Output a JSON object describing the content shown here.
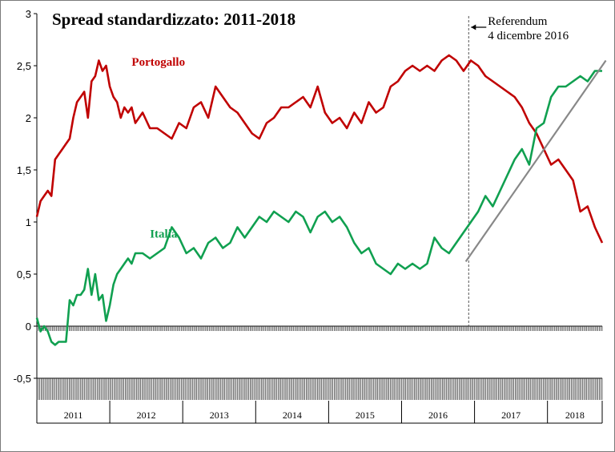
{
  "chart_data": {
    "type": "line",
    "title": "Spread standardizzato: 2011-2018",
    "xlabel": "",
    "ylabel": "",
    "ylim": [
      -0.5,
      3
    ],
    "xlim": [
      2011.0,
      2018.75
    ],
    "yticks": [
      3,
      2.5,
      2,
      1.5,
      1,
      0.5,
      0,
      -0.5
    ],
    "ytick_labels": [
      "3",
      "2,5",
      "2",
      "1,5",
      "1",
      "0,5",
      "0",
      "-0,5"
    ],
    "years": [
      "2011",
      "2012",
      "2013",
      "2014",
      "2015",
      "2016",
      "2017",
      "2018"
    ],
    "grid": false,
    "legend": "inline labels",
    "annotation": {
      "x": 2016.92,
      "line1": "Referendum",
      "line2": "4 dicembre 2016"
    },
    "trendline": {
      "x": [
        2016.88,
        2018.8
      ],
      "y": [
        0.62,
        2.55
      ],
      "color": "#888888"
    },
    "series": [
      {
        "name": "Portogallo",
        "color": "#c00000",
        "x": [
          2011.0,
          2011.05,
          2011.1,
          2011.15,
          2011.2,
          2011.25,
          2011.3,
          2011.35,
          2011.4,
          2011.45,
          2011.5,
          2011.55,
          2011.6,
          2011.65,
          2011.7,
          2011.75,
          2011.8,
          2011.85,
          2011.9,
          2011.95,
          2012.0,
          2012.05,
          2012.1,
          2012.15,
          2012.2,
          2012.25,
          2012.3,
          2012.35,
          2012.45,
          2012.55,
          2012.65,
          2012.75,
          2012.85,
          2012.95,
          2013.05,
          2013.15,
          2013.25,
          2013.35,
          2013.45,
          2013.55,
          2013.65,
          2013.75,
          2013.85,
          2013.95,
          2014.05,
          2014.15,
          2014.25,
          2014.35,
          2014.45,
          2014.55,
          2014.65,
          2014.75,
          2014.85,
          2014.95,
          2015.05,
          2015.15,
          2015.25,
          2015.35,
          2015.45,
          2015.55,
          2015.65,
          2015.75,
          2015.85,
          2015.95,
          2016.05,
          2016.15,
          2016.25,
          2016.35,
          2016.45,
          2016.55,
          2016.65,
          2016.75,
          2016.85,
          2016.95,
          2017.05,
          2017.15,
          2017.25,
          2017.35,
          2017.45,
          2017.55,
          2017.65,
          2017.75,
          2017.85,
          2017.95,
          2018.05,
          2018.15,
          2018.25,
          2018.35,
          2018.45,
          2018.55,
          2018.65,
          2018.75
        ],
        "y": [
          1.05,
          1.2,
          1.25,
          1.3,
          1.25,
          1.6,
          1.65,
          1.7,
          1.75,
          1.8,
          2.0,
          2.15,
          2.2,
          2.25,
          2.0,
          2.35,
          2.4,
          2.55,
          2.45,
          2.5,
          2.3,
          2.2,
          2.15,
          2.0,
          2.1,
          2.05,
          2.1,
          1.95,
          2.05,
          1.9,
          1.9,
          1.85,
          1.8,
          1.95,
          1.9,
          2.1,
          2.15,
          2.0,
          2.3,
          2.2,
          2.1,
          2.05,
          1.95,
          1.85,
          1.8,
          1.95,
          2.0,
          2.1,
          2.1,
          2.15,
          2.2,
          2.1,
          2.3,
          2.05,
          1.95,
          2.0,
          1.9,
          2.05,
          1.95,
          2.15,
          2.05,
          2.1,
          2.3,
          2.35,
          2.45,
          2.5,
          2.45,
          2.5,
          2.45,
          2.55,
          2.6,
          2.55,
          2.45,
          2.55,
          2.5,
          2.4,
          2.35,
          2.3,
          2.25,
          2.2,
          2.1,
          1.95,
          1.85,
          1.7,
          1.55,
          1.6,
          1.5,
          1.4,
          1.1,
          1.15,
          0.95,
          0.8
        ]
      },
      {
        "name": "Italia",
        "color": "#10a050",
        "x": [
          2011.0,
          2011.05,
          2011.1,
          2011.15,
          2011.2,
          2011.25,
          2011.3,
          2011.35,
          2011.4,
          2011.45,
          2011.5,
          2011.55,
          2011.6,
          2011.65,
          2011.7,
          2011.75,
          2011.8,
          2011.85,
          2011.9,
          2011.95,
          2012.0,
          2012.05,
          2012.1,
          2012.15,
          2012.2,
          2012.25,
          2012.3,
          2012.35,
          2012.45,
          2012.55,
          2012.65,
          2012.75,
          2012.85,
          2012.95,
          2013.05,
          2013.15,
          2013.25,
          2013.35,
          2013.45,
          2013.55,
          2013.65,
          2013.75,
          2013.85,
          2013.95,
          2014.05,
          2014.15,
          2014.25,
          2014.35,
          2014.45,
          2014.55,
          2014.65,
          2014.75,
          2014.85,
          2014.95,
          2015.05,
          2015.15,
          2015.25,
          2015.35,
          2015.45,
          2015.55,
          2015.65,
          2015.75,
          2015.85,
          2015.95,
          2016.05,
          2016.15,
          2016.25,
          2016.35,
          2016.45,
          2016.55,
          2016.65,
          2016.75,
          2016.85,
          2016.95,
          2017.05,
          2017.15,
          2017.25,
          2017.35,
          2017.45,
          2017.55,
          2017.65,
          2017.75,
          2017.85,
          2017.95,
          2018.05,
          2018.15,
          2018.25,
          2018.35,
          2018.45,
          2018.55,
          2018.65,
          2018.75
        ],
        "y": [
          0.08,
          -0.05,
          0.0,
          -0.05,
          -0.15,
          -0.18,
          -0.15,
          -0.15,
          -0.15,
          0.25,
          0.2,
          0.3,
          0.3,
          0.35,
          0.55,
          0.3,
          0.5,
          0.25,
          0.3,
          0.05,
          0.2,
          0.4,
          0.5,
          0.55,
          0.6,
          0.65,
          0.6,
          0.7,
          0.7,
          0.65,
          0.7,
          0.75,
          0.95,
          0.85,
          0.7,
          0.75,
          0.65,
          0.8,
          0.85,
          0.75,
          0.8,
          0.95,
          0.85,
          0.95,
          1.05,
          1.0,
          1.1,
          1.05,
          1.0,
          1.1,
          1.05,
          0.9,
          1.05,
          1.1,
          1.0,
          1.05,
          0.95,
          0.8,
          0.7,
          0.75,
          0.6,
          0.55,
          0.5,
          0.6,
          0.55,
          0.6,
          0.55,
          0.6,
          0.85,
          0.75,
          0.7,
          0.8,
          0.9,
          1.0,
          1.1,
          1.25,
          1.15,
          1.3,
          1.45,
          1.6,
          1.7,
          1.55,
          1.9,
          1.95,
          2.2,
          2.3,
          2.3,
          2.35,
          2.4,
          2.35,
          2.45,
          2.45
        ]
      }
    ]
  }
}
